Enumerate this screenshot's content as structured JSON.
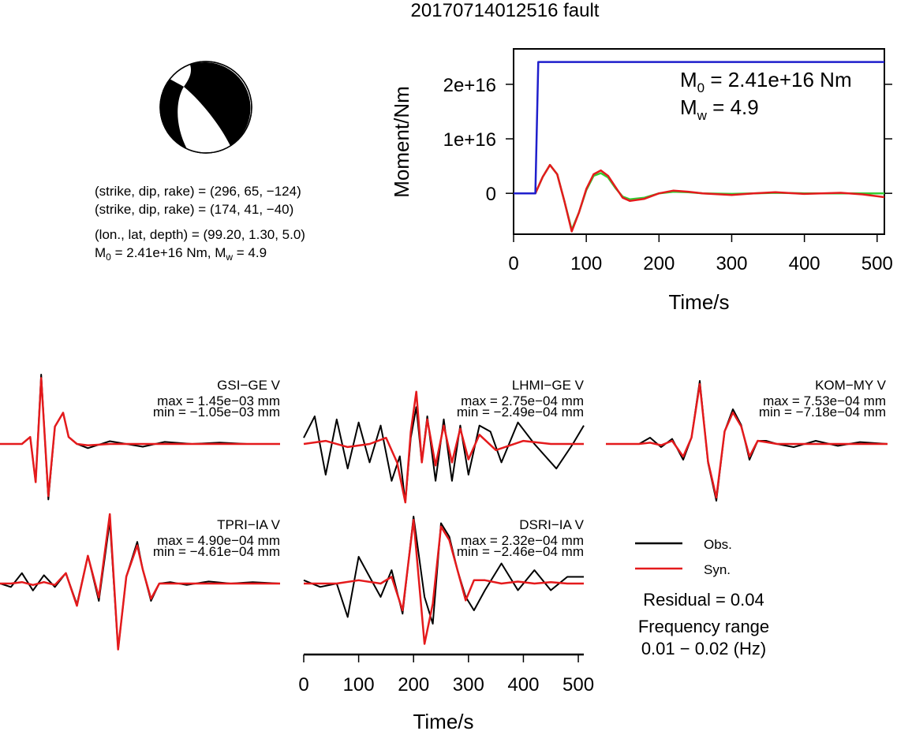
{
  "title": "20170714012516 fault",
  "mechanism": {
    "line1": "(strike, dip, rake) = (296, 65, −124)",
    "line2": "(strike, dip, rake) = (174, 41, −40)",
    "line3": "(lon., lat, depth) = (99.20, 1.30, 5.0)",
    "m0_prefix": "M",
    "m0_sub": "0",
    "line4_rest": " = 2.41e+16 Nm, M",
    "mw_sub": "w",
    "line4_end": " = 4.9"
  },
  "stf": {
    "ylabel": "Moment/Nm",
    "xlabel": "Time/s",
    "m0_label_pre": "M",
    "m0_label_sub": "0",
    "m0_label_val": " = 2.41e+16 Nm",
    "mw_label_pre": "M",
    "mw_label_sub": "w",
    "mw_label_val": " = 4.9"
  },
  "waveforms": {
    "xlabel": "Time/s",
    "stations": [
      {
        "name": "GSI−GE V",
        "max": "max = 1.45e−03 mm",
        "min": "min = −1.05e−03 mm"
      },
      {
        "name": "LHMI−GE V",
        "max": "max = 2.75e−04 mm",
        "min": "min = −2.49e−04 mm"
      },
      {
        "name": "KOM−MY V",
        "max": "max = 7.53e−04 mm",
        "min": "min = −7.18e−04 mm"
      },
      {
        "name": "TPRI−IA V",
        "max": "max = 4.90e−04 mm",
        "min": "min = −4.61e−04 mm"
      },
      {
        "name": "DSRI−IA V",
        "max": "max = 2.32e−04 mm",
        "min": "min = −2.46e−04 mm"
      }
    ]
  },
  "legend": {
    "obs": "Obs.",
    "syn": "Syn.",
    "residual": "Residual = 0.04",
    "freq_title": "Frequency range",
    "freq_range": "0.01 − 0.02 (Hz)"
  },
  "colors": {
    "obs": "#000000",
    "syn": "#e41a1c",
    "cumulative_moment": "#1f1fcc",
    "moment_rate_obs": "#e41a1c",
    "moment_rate_syn": "#33cc33"
  },
  "chart_data": [
    {
      "type": "line",
      "xlabel": "Time/s",
      "ylabel": "Moment/Nm",
      "xlim": [
        0,
        510
      ],
      "ylim": [
        -7500000000000000.0,
        2.65e+16
      ],
      "xticks": [
        0,
        100,
        200,
        300,
        400,
        500
      ],
      "yticks": [
        0,
        1e+16,
        2e+16
      ],
      "ytick_labels": [
        "0",
        "1e+16",
        "2e+16"
      ],
      "series": [
        {
          "color": "#1f1fcc",
          "x": [
            0,
            30,
            34,
            510
          ],
          "y": [
            0,
            0,
            2.41e+16,
            2.41e+16
          ]
        },
        {
          "color": "#e41a1c",
          "x": [
            0,
            30,
            40,
            50,
            60,
            70,
            80,
            90,
            100,
            110,
            120,
            130,
            140,
            150,
            160,
            180,
            200,
            220,
            240,
            260,
            300,
            330,
            360,
            400,
            450,
            480,
            510
          ],
          "y": [
            0,
            0,
            3000000000000000.0,
            5200000000000000.0,
            3500000000000000.0,
            -1500000000000000.0,
            -7000000000000000.0,
            -3500000000000000.0,
            800000000000000.0,
            3500000000000000.0,
            4200000000000000.0,
            3200000000000000.0,
            1200000000000000.0,
            -800000000000000.0,
            -1400000000000000.0,
            -1000000000000000.0,
            0,
            500000000000000.0,
            300000000000000.0,
            0,
            -300000000000000.0,
            0,
            200000000000000.0,
            -100000000000000.0,
            100000000000000.0,
            -200000000000000.0,
            -700000000000000.0
          ]
        },
        {
          "color": "#33cc33",
          "x": [
            0,
            30,
            40,
            50,
            60,
            70,
            80,
            90,
            100,
            110,
            120,
            130,
            140,
            150,
            160,
            180,
            200,
            220,
            240,
            260,
            300,
            330,
            360,
            400,
            450,
            480,
            510
          ],
          "y": [
            0,
            0,
            3000000000000000.0,
            5200000000000000.0,
            3500000000000000.0,
            -1500000000000000.0,
            -6700000000000000.0,
            -3500000000000000.0,
            600000000000000.0,
            3200000000000000.0,
            3700000000000000.0,
            2900000000000000.0,
            1000000000000000.0,
            -600000000000000.0,
            -1100000000000000.0,
            -800000000000000.0,
            0,
            300000000000000.0,
            200000000000000.0,
            0,
            -100000000000000.0,
            0,
            100000000000000.0,
            0,
            0,
            0,
            0
          ]
        }
      ]
    },
    {
      "type": "line",
      "xlabel": "Time/s",
      "xlim": [
        0,
        510
      ],
      "xticks": [
        0,
        100,
        200,
        300,
        400,
        500
      ],
      "panels": [
        {
          "station": "GSI−GE V",
          "obs": {
            "x": [
              0,
              40,
              55,
              65,
              75,
              88,
              100,
              115,
              125,
              140,
              160,
              200,
              260,
              300,
              350,
              400,
              450,
              510
            ],
            "y": [
              0,
              0,
              0.1,
              -0.55,
              1.0,
              -0.8,
              0.25,
              0.45,
              0.1,
              0,
              -0.06,
              0.04,
              -0.04,
              0.03,
              0,
              0.02,
              0,
              0
            ]
          },
          "syn": {
            "x": [
              0,
              40,
              55,
              65,
              75,
              88,
              100,
              115,
              125,
              140,
              160,
              200,
              260,
              300,
              350,
              400,
              450,
              510
            ],
            "y": [
              0,
              0,
              0.1,
              -0.55,
              0.95,
              -0.75,
              0.25,
              0.45,
              0.1,
              0,
              -0.02,
              0,
              0,
              0,
              0,
              0,
              0,
              0
            ]
          }
        },
        {
          "station": "LHMI−GE V",
          "obs": {
            "x": [
              0,
              20,
              40,
              60,
              80,
              100,
              120,
              140,
              160,
              175,
              185,
              195,
              205,
              215,
              225,
              240,
              255,
              270,
              285,
              300,
              320,
              340,
              360,
              390,
              420,
              460,
              490,
              510
            ],
            "y": [
              0.1,
              0.45,
              -0.5,
              0.4,
              -0.4,
              0.35,
              -0.3,
              0.3,
              -0.6,
              -0.2,
              -0.95,
              0.1,
              0.6,
              -0.3,
              0.45,
              -0.6,
              0.4,
              -0.6,
              0.3,
              -0.5,
              0.3,
              0.2,
              -0.3,
              0.35,
              0.0,
              -0.4,
              0.0,
              0.3
            ]
          },
          "syn": {
            "x": [
              0,
              40,
              80,
              120,
              150,
              170,
              185,
              195,
              205,
              215,
              225,
              240,
              255,
              270,
              285,
              300,
              320,
              350,
              400,
              450,
              510
            ],
            "y": [
              0,
              0.05,
              -0.05,
              0,
              0.1,
              -0.3,
              -0.95,
              0.2,
              0.85,
              -0.3,
              0.4,
              -0.35,
              0.3,
              -0.3,
              0.25,
              -0.25,
              0.15,
              -0.1,
              0.05,
              0,
              0
            ]
          }
        },
        {
          "station": "KOM−MY V",
          "obs": {
            "x": [
              0,
              60,
              80,
              100,
              120,
              140,
              155,
              170,
              185,
              200,
              215,
              230,
              245,
              260,
              275,
              290,
              310,
              340,
              380,
              420,
              460,
              510
            ],
            "y": [
              0,
              0,
              0.1,
              -0.05,
              0.08,
              -0.25,
              0.1,
              1.0,
              -0.3,
              -0.9,
              0.2,
              0.55,
              0.3,
              -0.25,
              0.05,
              0.05,
              0,
              -0.05,
              0.05,
              -0.03,
              0.03,
              0
            ]
          },
          "syn": {
            "x": [
              0,
              60,
              80,
              100,
              120,
              140,
              155,
              170,
              185,
              200,
              215,
              230,
              245,
              260,
              275,
              290,
              310,
              340,
              380,
              420,
              460,
              510
            ],
            "y": [
              0,
              0,
              0.02,
              -0.02,
              0.05,
              -0.2,
              0.1,
              0.95,
              -0.28,
              -0.85,
              0.2,
              0.5,
              0.28,
              -0.2,
              0.05,
              0.03,
              0,
              0,
              0,
              0,
              0,
              0
            ]
          }
        },
        {
          "station": "TPRI−IA V",
          "obs": {
            "x": [
              0,
              20,
              40,
              60,
              80,
              100,
              120,
              140,
              160,
              180,
              200,
              215,
              230,
              250,
              260,
              275,
              290,
              310,
              340,
              380,
              420,
              460,
              510
            ],
            "y": [
              0,
              -0.05,
              0.15,
              -0.1,
              0.12,
              -0.05,
              0.15,
              -0.3,
              0.4,
              -0.25,
              0.9,
              -0.95,
              0.1,
              0.6,
              0.2,
              -0.25,
              0.0,
              0.02,
              -0.02,
              0.03,
              0.0,
              0.02,
              0
            ]
          },
          "syn": {
            "x": [
              0,
              20,
              40,
              60,
              80,
              100,
              120,
              140,
              160,
              180,
              200,
              215,
              230,
              250,
              260,
              275,
              290,
              310,
              340,
              380,
              420,
              460,
              510
            ],
            "y": [
              0,
              0,
              0.02,
              -0.02,
              0.02,
              -0.02,
              0.15,
              -0.32,
              0.4,
              -0.2,
              1.0,
              -0.95,
              0.1,
              0.55,
              0.2,
              -0.22,
              0.0,
              0.0,
              0,
              0,
              0,
              0,
              0
            ]
          }
        },
        {
          "station": "DSRI−IA V",
          "obs": {
            "x": [
              0,
              30,
              60,
              80,
              100,
              120,
              140,
              160,
              180,
              200,
              220,
              235,
              250,
              265,
              280,
              295,
              310,
              330,
              360,
              390,
              420,
              450,
              480,
              510
            ],
            "y": [
              0.05,
              -0.05,
              0.0,
              -0.5,
              0.4,
              0.1,
              -0.2,
              0.2,
              -0.45,
              1.0,
              -0.2,
              -0.6,
              0.9,
              0.7,
              0.2,
              -0.2,
              -0.4,
              -0.1,
              0.3,
              -0.1,
              0.2,
              -0.1,
              0.1,
              0.1
            ]
          },
          "syn": {
            "x": [
              0,
              60,
              100,
              140,
              160,
              180,
              200,
              220,
              235,
              250,
              265,
              280,
              295,
              310,
              330,
              360,
              390,
              420,
              450,
              480,
              510
            ],
            "y": [
              0,
              0,
              0.05,
              0,
              0.1,
              -0.4,
              0.95,
              -0.9,
              -0.3,
              0.85,
              0.65,
              0.2,
              -0.25,
              0.05,
              0.05,
              0,
              0.03,
              0,
              0.02,
              0,
              0
            ]
          }
        }
      ]
    }
  ]
}
